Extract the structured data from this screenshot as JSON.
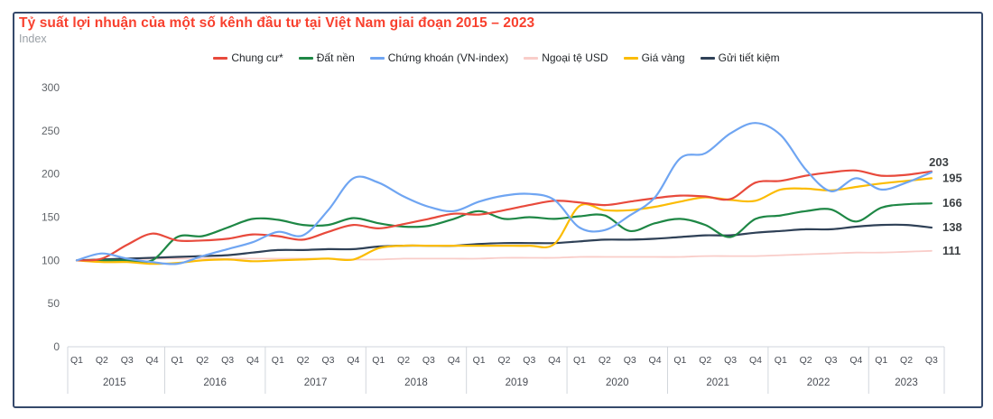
{
  "chart_data": {
    "type": "line",
    "title": "Tỷ suất lợi nhuận của một số kênh đầu tư tại Việt Nam giai đoạn 2015 – 2023",
    "ylabel": "Index",
    "y_ticks": [
      0,
      50,
      100,
      150,
      200,
      250,
      300
    ],
    "ylim": [
      0,
      300
    ],
    "grid": false,
    "legend_position": "top-center",
    "x_axis": {
      "years": [
        {
          "label": "2015",
          "quarters": [
            "Q1",
            "Q2",
            "Q3",
            "Q4"
          ]
        },
        {
          "label": "2016",
          "quarters": [
            "Q1",
            "Q2",
            "Q3",
            "Q4"
          ]
        },
        {
          "label": "2017",
          "quarters": [
            "Q1",
            "Q2",
            "Q3",
            "Q4"
          ]
        },
        {
          "label": "2018",
          "quarters": [
            "Q1",
            "Q2",
            "Q3",
            "Q4"
          ]
        },
        {
          "label": "2019",
          "quarters": [
            "Q1",
            "Q2",
            "Q3",
            "Q4"
          ]
        },
        {
          "label": "2020",
          "quarters": [
            "Q1",
            "Q2",
            "Q3",
            "Q4"
          ]
        },
        {
          "label": "2021",
          "quarters": [
            "Q1",
            "Q2",
            "Q3",
            "Q4"
          ]
        },
        {
          "label": "2022",
          "quarters": [
            "Q1",
            "Q2",
            "Q3",
            "Q4"
          ]
        },
        {
          "label": "2023",
          "quarters": [
            "Q1",
            "Q2",
            "Q3"
          ]
        }
      ]
    },
    "series": [
      {
        "id": "chung-cu",
        "name": "Chung cư*",
        "color": "#E84A3C",
        "end_label": "203",
        "values": [
          100,
          102,
          118,
          131,
          123,
          123,
          125,
          130,
          128,
          124,
          133,
          141,
          137,
          142,
          148,
          154,
          153,
          158,
          164,
          169,
          167,
          164,
          168,
          172,
          175,
          174,
          171,
          190,
          192,
          198,
          202,
          204,
          198,
          199,
          203
        ]
      },
      {
        "id": "dat-nen",
        "name": "Đất nền",
        "color": "#1E8745",
        "end_label": "166",
        "values": [
          100,
          100,
          100,
          100,
          127,
          128,
          138,
          148,
          147,
          141,
          141,
          149,
          143,
          139,
          140,
          148,
          157,
          148,
          150,
          148,
          151,
          152,
          134,
          143,
          148,
          141,
          127,
          148,
          152,
          157,
          159,
          145,
          161,
          165,
          166
        ]
      },
      {
        "id": "chung-khoan",
        "name": "Chứng khoán (VN-index)",
        "color": "#6FA5F2",
        "end_label": null,
        "values": [
          100,
          108,
          102,
          98,
          96,
          105,
          113,
          121,
          133,
          129,
          158,
          195,
          190,
          174,
          162,
          157,
          168,
          175,
          177,
          170,
          138,
          135,
          152,
          173,
          218,
          224,
          247,
          259,
          245,
          205,
          180,
          195,
          182,
          190,
          202
        ]
      },
      {
        "id": "ngoai-te-usd",
        "name": "Ngoại tệ USD",
        "color": "#F9CDC9",
        "end_label": "111",
        "values": [
          100,
          100,
          101,
          102,
          102,
          102,
          102,
          102,
          102,
          102,
          102,
          101,
          101,
          102,
          102,
          102,
          102,
          103,
          103,
          103,
          104,
          104,
          104,
          104,
          104,
          105,
          105,
          105,
          106,
          107,
          108,
          109,
          109,
          110,
          111
        ]
      },
      {
        "id": "gia-vang",
        "name": "Giá vàng",
        "color": "#FBBC04",
        "end_label": "195",
        "values": [
          100,
          98,
          98,
          96,
          97,
          100,
          101,
          99,
          100,
          101,
          102,
          101,
          114,
          117,
          117,
          117,
          117,
          117,
          117,
          119,
          163,
          158,
          158,
          162,
          168,
          173,
          170,
          169,
          182,
          183,
          181,
          185,
          189,
          192,
          195
        ]
      },
      {
        "id": "gui-tiet-kiem",
        "name": "Gửi tiết kiệm",
        "color": "#2F4157",
        "end_label": "138",
        "values": [
          100,
          101,
          102,
          103,
          104,
          105,
          106,
          109,
          112,
          112,
          113,
          113,
          116,
          117,
          117,
          117,
          119,
          120,
          120,
          120,
          122,
          124,
          124,
          125,
          127,
          129,
          129,
          132,
          134,
          136,
          136,
          139,
          141,
          141,
          138
        ]
      }
    ]
  }
}
